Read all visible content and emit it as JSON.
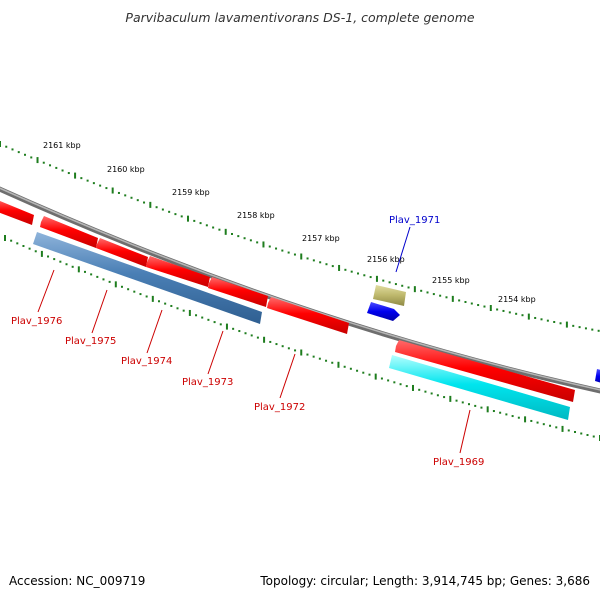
{
  "title": "Parvibaculum lavamentivorans DS-1, complete genome",
  "footer": {
    "accession": "Accession: NC_009719",
    "summary": "Topology: circular; Length: 3,914,745 bp; Genes: 3,686"
  },
  "colors": {
    "backbone": "#8a8a8a",
    "tick": "#1e7d1e",
    "gene_red": "#ff0000",
    "gene_blue": "#4a7fb5",
    "gene_cyan": "#00e5ee",
    "gene_dark_blue": "#0000ee",
    "gene_khaki": "#bdb76b",
    "label_red": "#cc0000",
    "label_blue": "#0000cc"
  },
  "ticks": [
    "2161 kbp",
    "2160 kbp",
    "2159 kbp",
    "2158 kbp",
    "2157 kbp",
    "2156 kbp",
    "2155 kbp",
    "2154 kbp"
  ],
  "gene_labels": [
    "Plav_1976",
    "Plav_1975",
    "Plav_1974",
    "Plav_1973",
    "Plav_1972",
    "Plav_1971",
    "Plav_1969"
  ]
}
